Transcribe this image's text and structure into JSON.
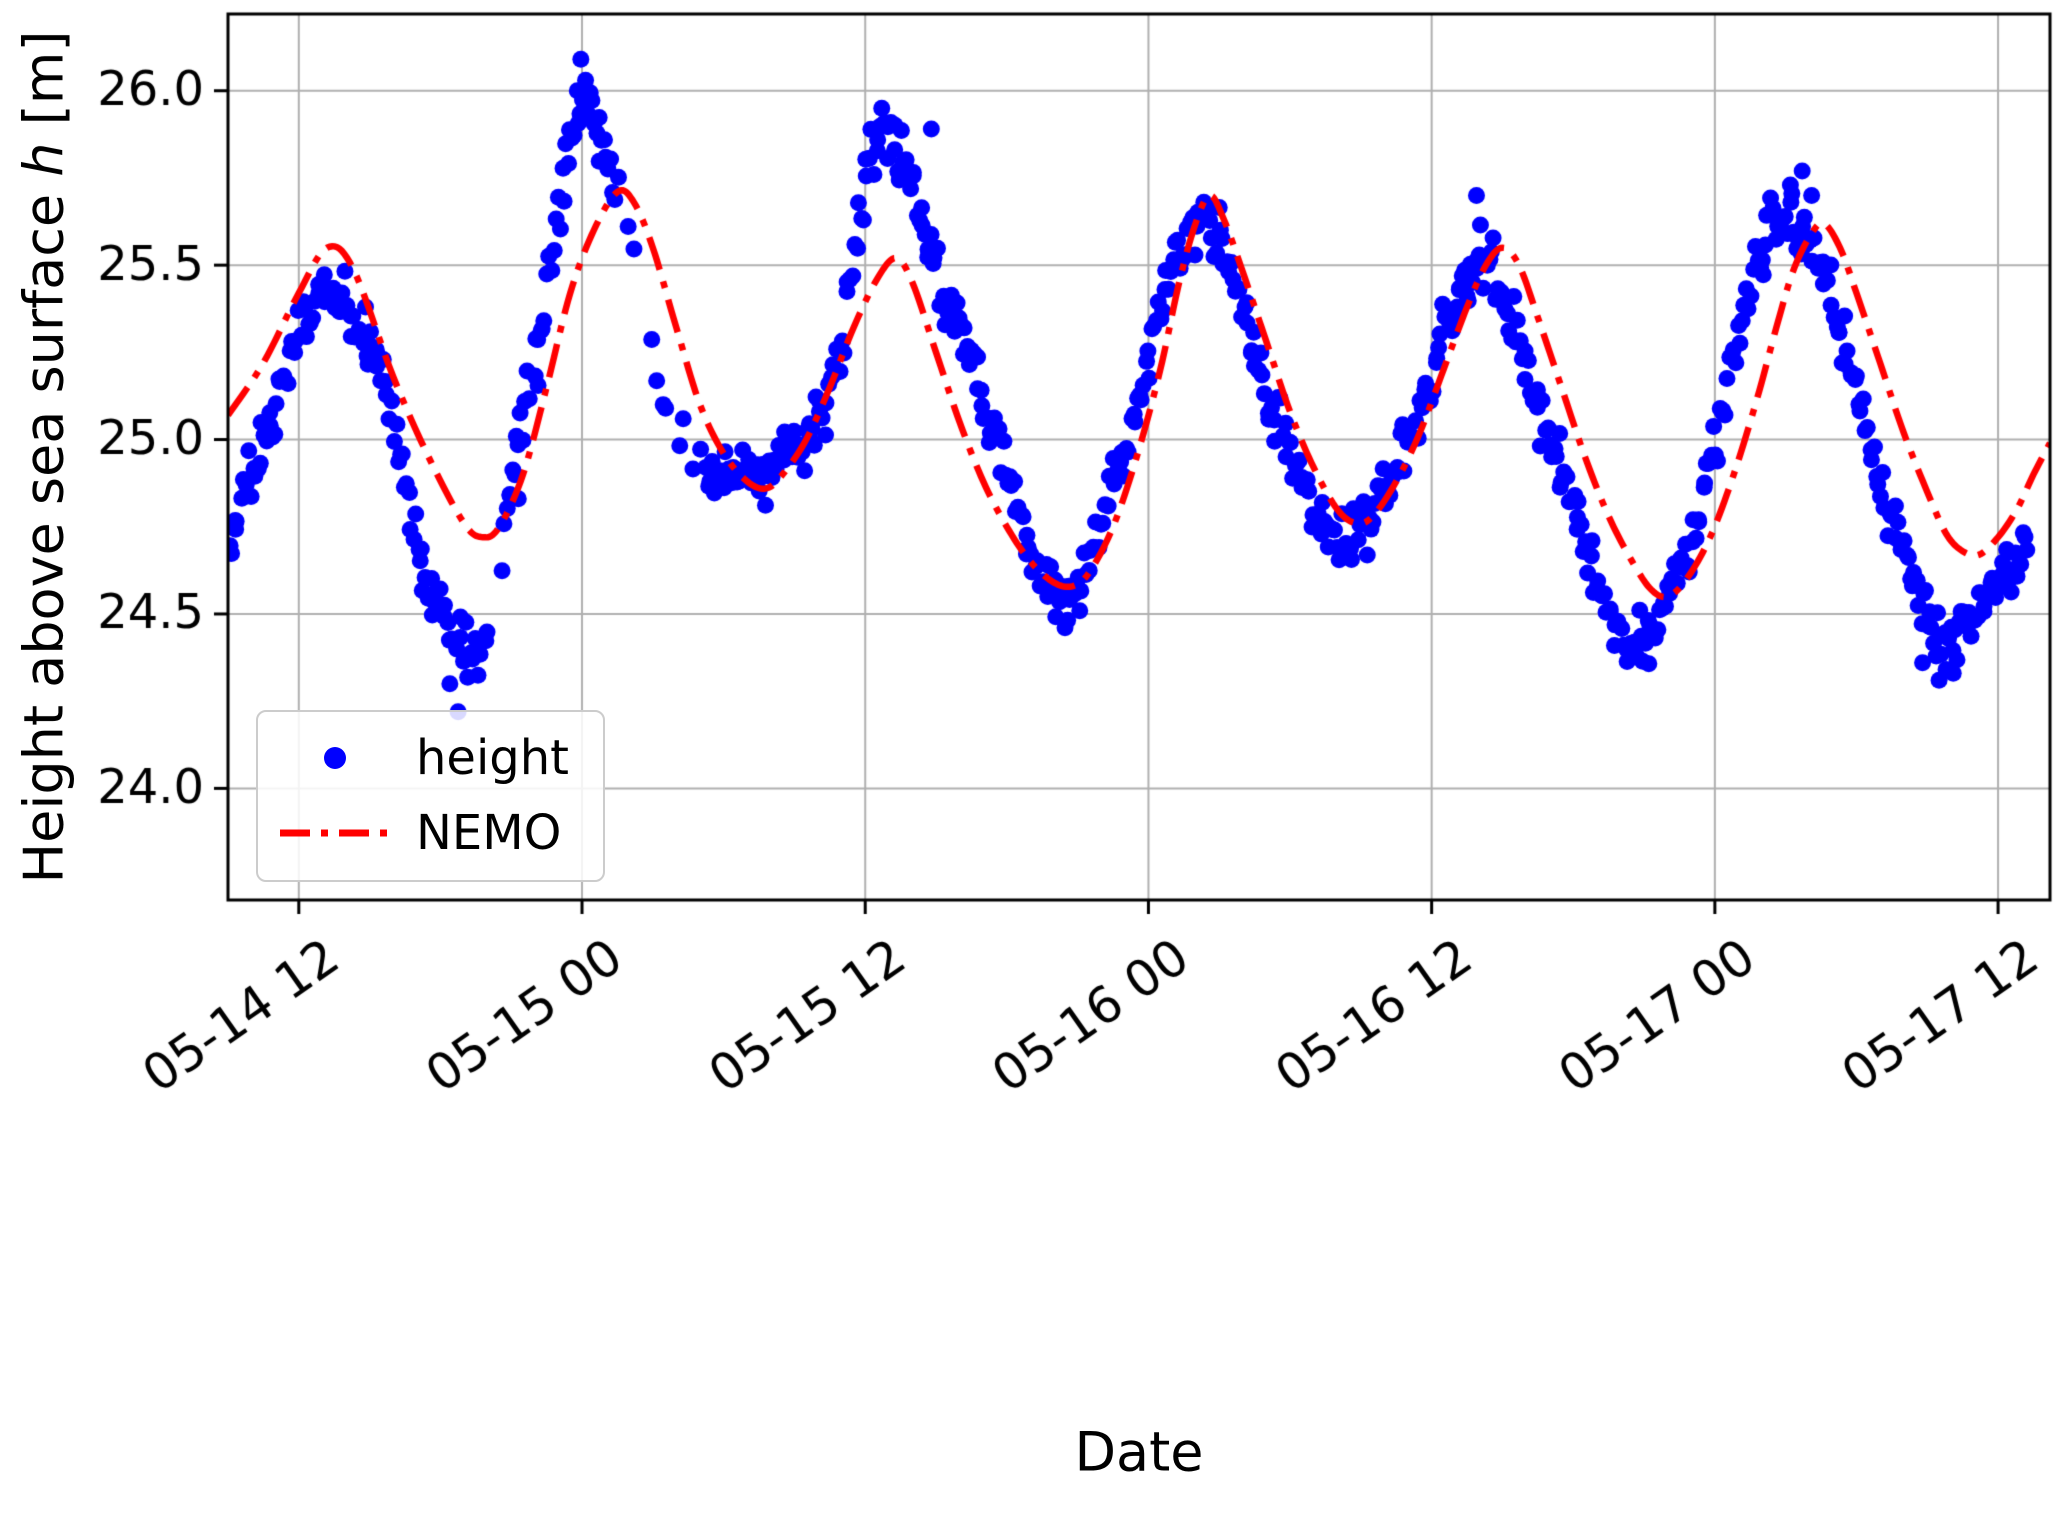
{
  "chart_data": {
    "type": "scatter",
    "title": "",
    "xlabel": "Date",
    "ylabel": {
      "prefix": "Height above sea surface ",
      "var": "h",
      "suffix": " [m]"
    },
    "grid": true,
    "grid_color": "#b0b0b0",
    "background": "#ffffff",
    "xlim_hours": [
      9.0,
      86.2
    ],
    "ylim": [
      23.68,
      26.22
    ],
    "x_ticks": [
      {
        "t": 12,
        "label": "05-14 12"
      },
      {
        "t": 24,
        "label": "05-15 00"
      },
      {
        "t": 36,
        "label": "05-15 12"
      },
      {
        "t": 48,
        "label": "05-16 00"
      },
      {
        "t": 60,
        "label": "05-16 12"
      },
      {
        "t": 72,
        "label": "05-17 00"
      },
      {
        "t": 84,
        "label": "05-17 12"
      }
    ],
    "y_ticks": [
      {
        "v": 24.0,
        "label": "24.0"
      },
      {
        "v": 24.5,
        "label": "24.5"
      },
      {
        "v": 25.0,
        "label": "25.0"
      },
      {
        "v": 25.5,
        "label": "25.5"
      },
      {
        "v": 26.0,
        "label": "26.0"
      }
    ],
    "legend": {
      "position": "lower left",
      "entries": [
        {
          "label": "height",
          "type": "scatter",
          "color": "#0000ff"
        },
        {
          "label": "NEMO",
          "type": "dashdot-line",
          "color": "#ff0000"
        }
      ]
    },
    "series": {
      "nemo": {
        "name": "NEMO",
        "color": "#ff0000",
        "style": "dashdot",
        "line_width": 6.5,
        "points": [
          [
            9.0,
            25.07
          ],
          [
            10.5,
            25.22
          ],
          [
            12.0,
            25.42
          ],
          [
            13.2,
            25.55
          ],
          [
            14.3,
            25.49
          ],
          [
            16.0,
            25.18
          ],
          [
            17.5,
            24.95
          ],
          [
            19.0,
            24.76
          ],
          [
            19.8,
            24.72
          ],
          [
            20.5,
            24.75
          ],
          [
            21.5,
            24.9
          ],
          [
            22.5,
            25.15
          ],
          [
            23.5,
            25.42
          ],
          [
            24.5,
            25.6
          ],
          [
            25.5,
            25.71
          ],
          [
            26.2,
            25.68
          ],
          [
            27.0,
            25.55
          ],
          [
            28.0,
            25.32
          ],
          [
            29.0,
            25.1
          ],
          [
            30.0,
            24.96
          ],
          [
            31.0,
            24.88
          ],
          [
            31.8,
            24.86
          ],
          [
            32.5,
            24.9
          ],
          [
            33.5,
            25.0
          ],
          [
            34.5,
            25.15
          ],
          [
            35.5,
            25.32
          ],
          [
            36.5,
            25.46
          ],
          [
            37.3,
            25.52
          ],
          [
            38.0,
            25.45
          ],
          [
            39.0,
            25.25
          ],
          [
            40.0,
            25.05
          ],
          [
            41.0,
            24.88
          ],
          [
            42.0,
            24.75
          ],
          [
            43.0,
            24.65
          ],
          [
            44.0,
            24.59
          ],
          [
            44.8,
            24.58
          ],
          [
            45.5,
            24.62
          ],
          [
            46.5,
            24.75
          ],
          [
            47.5,
            24.95
          ],
          [
            48.5,
            25.2
          ],
          [
            49.3,
            25.45
          ],
          [
            50.0,
            25.62
          ],
          [
            50.6,
            25.7
          ],
          [
            51.2,
            25.63
          ],
          [
            52.0,
            25.48
          ],
          [
            53.0,
            25.28
          ],
          [
            54.0,
            25.08
          ],
          [
            55.0,
            24.92
          ],
          [
            56.0,
            24.8
          ],
          [
            56.8,
            24.76
          ],
          [
            57.5,
            24.78
          ],
          [
            58.5,
            24.88
          ],
          [
            59.5,
            25.02
          ],
          [
            60.5,
            25.2
          ],
          [
            61.5,
            25.38
          ],
          [
            62.3,
            25.5
          ],
          [
            63.0,
            25.55
          ],
          [
            63.7,
            25.5
          ],
          [
            64.5,
            25.35
          ],
          [
            65.5,
            25.15
          ],
          [
            66.5,
            24.95
          ],
          [
            67.5,
            24.78
          ],
          [
            68.5,
            24.65
          ],
          [
            69.3,
            24.57
          ],
          [
            70.0,
            24.55
          ],
          [
            70.8,
            24.6
          ],
          [
            71.8,
            24.72
          ],
          [
            72.8,
            24.9
          ],
          [
            73.8,
            25.12
          ],
          [
            74.6,
            25.32
          ],
          [
            75.3,
            25.48
          ],
          [
            76.0,
            25.58
          ],
          [
            76.6,
            25.62
          ],
          [
            77.3,
            25.55
          ],
          [
            78.0,
            25.42
          ],
          [
            79.0,
            25.22
          ],
          [
            80.0,
            25.02
          ],
          [
            81.0,
            24.85
          ],
          [
            81.8,
            24.73
          ],
          [
            82.5,
            24.68
          ],
          [
            83.2,
            24.67
          ],
          [
            84.0,
            24.72
          ],
          [
            84.8,
            24.8
          ],
          [
            85.5,
            24.9
          ],
          [
            86.2,
            24.99
          ]
        ]
      },
      "height": {
        "name": "height",
        "color": "#0000ff",
        "marker": "circle",
        "marker_radius": 8.5,
        "sample_step_h": 0.09,
        "jitter_sigma": 0.042,
        "t_jitter": 0.035,
        "seed": 42,
        "t_range": [
          9.1,
          85.3
        ],
        "gaps": [
          [
            25.4,
            29.2,
            0.3
          ],
          [
            19.9,
            20.6,
            0.45
          ]
        ],
        "centerline": [
          [
            9.0,
            24.72
          ],
          [
            9.5,
            24.8
          ],
          [
            10.0,
            24.88
          ],
          [
            10.5,
            24.97
          ],
          [
            11.0,
            25.08
          ],
          [
            11.5,
            25.2
          ],
          [
            12.0,
            25.3
          ],
          [
            12.5,
            25.37
          ],
          [
            13.0,
            25.42
          ],
          [
            13.5,
            25.4
          ],
          [
            14.0,
            25.38
          ],
          [
            14.5,
            25.33
          ],
          [
            15.0,
            25.28
          ],
          [
            15.5,
            25.18
          ],
          [
            16.0,
            25.05
          ],
          [
            16.5,
            24.85
          ],
          [
            17.0,
            24.7
          ],
          [
            17.5,
            24.58
          ],
          [
            18.0,
            24.5
          ],
          [
            18.5,
            24.44
          ],
          [
            19.0,
            24.4
          ],
          [
            19.5,
            24.38
          ],
          [
            20.0,
            24.5
          ],
          [
            20.5,
            24.68
          ],
          [
            21.0,
            24.9
          ],
          [
            21.5,
            25.05
          ],
          [
            22.0,
            25.22
          ],
          [
            22.5,
            25.42
          ],
          [
            23.0,
            25.65
          ],
          [
            23.4,
            25.82
          ],
          [
            23.8,
            25.95
          ],
          [
            24.1,
            26.0
          ],
          [
            24.4,
            25.95
          ],
          [
            24.8,
            25.88
          ],
          [
            25.2,
            25.78
          ],
          [
            26.0,
            25.55
          ],
          [
            27.0,
            25.25
          ],
          [
            28.0,
            25.02
          ],
          [
            28.8,
            24.92
          ],
          [
            29.4,
            24.88
          ],
          [
            30.0,
            24.9
          ],
          [
            30.5,
            24.9
          ],
          [
            31.0,
            24.92
          ],
          [
            31.5,
            24.9
          ],
          [
            32.0,
            24.92
          ],
          [
            32.5,
            24.95
          ],
          [
            33.0,
            24.95
          ],
          [
            33.5,
            25.0
          ],
          [
            34.0,
            25.05
          ],
          [
            34.5,
            25.15
          ],
          [
            35.0,
            25.3
          ],
          [
            35.5,
            25.5
          ],
          [
            36.0,
            25.72
          ],
          [
            36.4,
            25.83
          ],
          [
            36.8,
            25.88
          ],
          [
            37.2,
            25.85
          ],
          [
            37.6,
            25.8
          ],
          [
            38.0,
            25.72
          ],
          [
            38.5,
            25.6
          ],
          [
            39.0,
            25.48
          ],
          [
            39.5,
            25.38
          ],
          [
            40.0,
            25.3
          ],
          [
            40.5,
            25.2
          ],
          [
            41.0,
            25.1
          ],
          [
            41.5,
            25.0
          ],
          [
            42.0,
            24.9
          ],
          [
            42.5,
            24.78
          ],
          [
            43.0,
            24.68
          ],
          [
            43.5,
            24.6
          ],
          [
            44.0,
            24.56
          ],
          [
            44.5,
            24.54
          ],
          [
            45.0,
            24.58
          ],
          [
            45.5,
            24.66
          ],
          [
            46.0,
            24.74
          ],
          [
            46.5,
            24.84
          ],
          [
            47.0,
            24.96
          ],
          [
            47.5,
            25.08
          ],
          [
            48.0,
            25.22
          ],
          [
            48.5,
            25.35
          ],
          [
            49.0,
            25.47
          ],
          [
            49.5,
            25.55
          ],
          [
            50.0,
            25.6
          ],
          [
            50.5,
            25.62
          ],
          [
            51.0,
            25.57
          ],
          [
            51.5,
            25.48
          ],
          [
            52.0,
            25.38
          ],
          [
            52.5,
            25.27
          ],
          [
            53.0,
            25.15
          ],
          [
            53.5,
            25.05
          ],
          [
            54.0,
            24.96
          ],
          [
            54.5,
            24.88
          ],
          [
            55.0,
            24.8
          ],
          [
            55.5,
            24.75
          ],
          [
            56.0,
            24.72
          ],
          [
            56.5,
            24.71
          ],
          [
            57.0,
            24.73
          ],
          [
            57.5,
            24.78
          ],
          [
            58.0,
            24.84
          ],
          [
            58.5,
            24.9
          ],
          [
            59.0,
            24.98
          ],
          [
            59.5,
            25.08
          ],
          [
            60.0,
            25.18
          ],
          [
            60.5,
            25.3
          ],
          [
            61.0,
            25.4
          ],
          [
            61.5,
            25.48
          ],
          [
            62.0,
            25.54
          ],
          [
            62.5,
            25.5
          ],
          [
            63.0,
            25.42
          ],
          [
            63.5,
            25.32
          ],
          [
            64.0,
            25.22
          ],
          [
            64.5,
            25.1
          ],
          [
            65.0,
            25.0
          ],
          [
            65.5,
            24.9
          ],
          [
            66.0,
            24.8
          ],
          [
            66.5,
            24.7
          ],
          [
            67.0,
            24.6
          ],
          [
            67.5,
            24.52
          ],
          [
            68.0,
            24.46
          ],
          [
            68.5,
            24.42
          ],
          [
            69.0,
            24.43
          ],
          [
            69.5,
            24.48
          ],
          [
            70.0,
            24.55
          ],
          [
            70.5,
            24.62
          ],
          [
            71.0,
            24.72
          ],
          [
            71.5,
            24.85
          ],
          [
            72.0,
            25.0
          ],
          [
            72.5,
            25.15
          ],
          [
            73.0,
            25.3
          ],
          [
            73.5,
            25.44
          ],
          [
            74.0,
            25.54
          ],
          [
            74.5,
            25.62
          ],
          [
            75.0,
            25.65
          ],
          [
            75.5,
            25.62
          ],
          [
            76.0,
            25.57
          ],
          [
            76.5,
            25.48
          ],
          [
            77.0,
            25.38
          ],
          [
            77.5,
            25.27
          ],
          [
            78.0,
            25.15
          ],
          [
            78.5,
            25.02
          ],
          [
            79.0,
            24.9
          ],
          [
            79.5,
            24.8
          ],
          [
            80.0,
            24.68
          ],
          [
            80.5,
            24.58
          ],
          [
            81.0,
            24.5
          ],
          [
            81.5,
            24.43
          ],
          [
            82.0,
            24.4
          ],
          [
            82.5,
            24.44
          ],
          [
            83.0,
            24.5
          ],
          [
            83.5,
            24.55
          ],
          [
            84.0,
            24.6
          ],
          [
            84.5,
            24.64
          ],
          [
            85.0,
            24.68
          ],
          [
            85.3,
            24.7
          ]
        ],
        "extra_points": [
          [
            23.95,
            26.09
          ],
          [
            23.8,
            26.0
          ],
          [
            24.15,
            26.03
          ],
          [
            18.75,
            24.22
          ],
          [
            18.4,
            24.3
          ],
          [
            38.8,
            25.89
          ],
          [
            21.3,
            24.83
          ],
          [
            61.9,
            25.7
          ],
          [
            75.7,
            25.77
          ],
          [
            75.2,
            25.73
          ],
          [
            76.1,
            25.7
          ],
          [
            36.7,
            25.95
          ],
          [
            50.4,
            25.66
          ],
          [
            80.8,
            24.36
          ],
          [
            81.5,
            24.31
          ],
          [
            82.1,
            24.33
          ]
        ]
      }
    }
  }
}
